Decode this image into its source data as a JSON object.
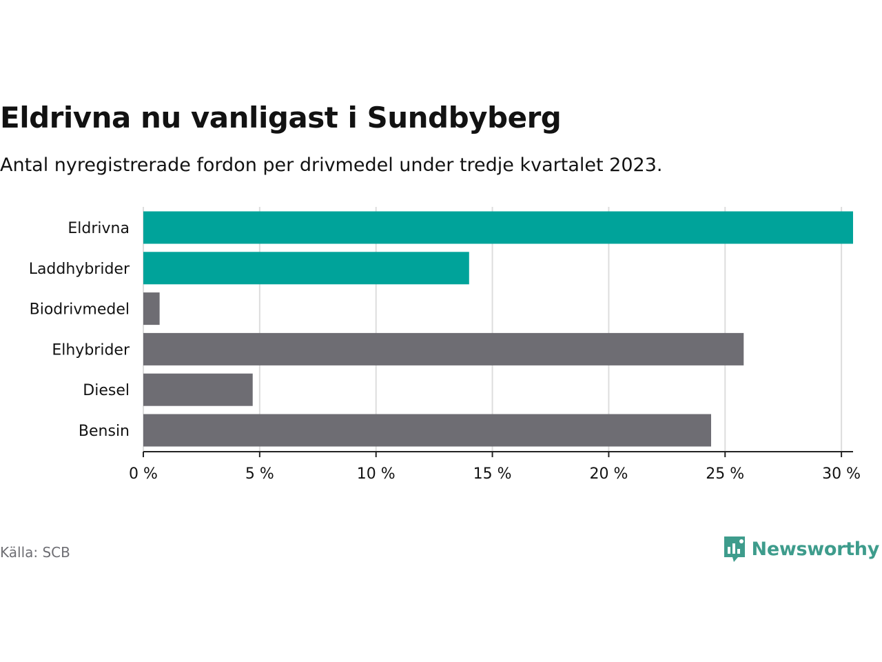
{
  "header": {
    "title": "Eldrivna nu vanligast i Sundbyberg",
    "subtitle": "Antal nyregistrerade fordon per drivmedel under tredje kvartalet 2023."
  },
  "footer": {
    "source": "Källa: SCB",
    "brand": "Newsworthy"
  },
  "colors": {
    "highlight": "#00a39a",
    "default": "#6e6d73",
    "grid": "#dddddd",
    "axis": "#222222",
    "brand": "#3e9c8c"
  },
  "chart_data": {
    "type": "bar",
    "orientation": "horizontal",
    "title": "Eldrivna nu vanligast i Sundbyberg",
    "subtitle": "Antal nyregistrerade fordon per drivmedel under tredje kvartalet 2023.",
    "categories": [
      "Eldrivna",
      "Laddhybrider",
      "Biodrivmedel",
      "Elhybrider",
      "Diesel",
      "Bensin"
    ],
    "values": [
      30.5,
      14.0,
      0.7,
      25.8,
      4.7,
      24.4
    ],
    "highlight": [
      true,
      true,
      false,
      false,
      false,
      false
    ],
    "xlim": [
      0,
      30.5
    ],
    "xticks": [
      0,
      5,
      10,
      15,
      20,
      25,
      30
    ],
    "xtick_labels": [
      "0 %",
      "5 %",
      "10 %",
      "15 %",
      "20 %",
      "25 %",
      "30 %"
    ],
    "xlabel": "",
    "ylabel": "",
    "grid": true,
    "legend": "none"
  }
}
